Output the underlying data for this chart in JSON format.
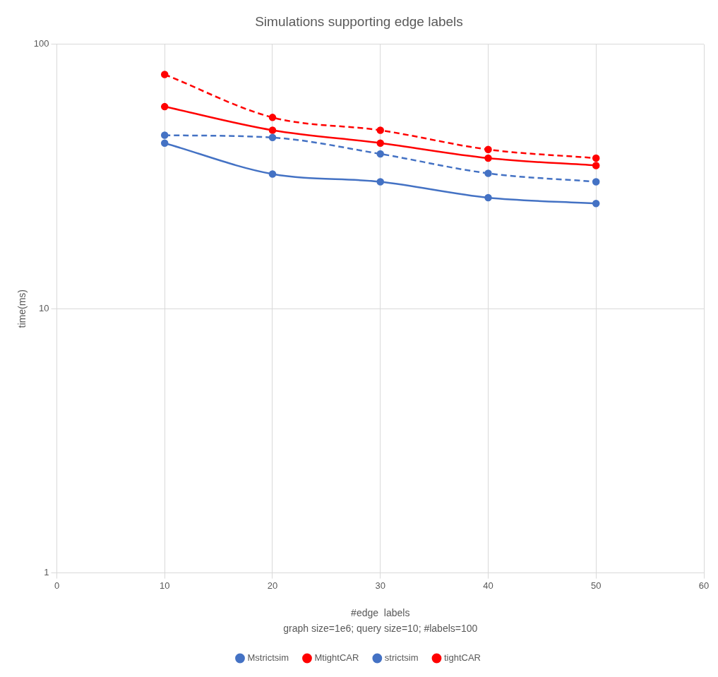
{
  "chart_data": {
    "type": "line",
    "title": "Simulations supporting edge labels",
    "xlabel": "#edge  labels",
    "ylabel": "time(ms)",
    "annotations": [
      "graph size=1e6; query size=10; #labels=100"
    ],
    "x": [
      10,
      20,
      30,
      40,
      50
    ],
    "xlim": [
      0,
      60
    ],
    "xticks": [
      0,
      10,
      20,
      30,
      40,
      50,
      60
    ],
    "ylim": [
      1,
      100
    ],
    "yticks": [
      1,
      10,
      100
    ],
    "log": "y",
    "grid": true,
    "legend": "bottom",
    "marker": "circle",
    "series": [
      {
        "name": "Mstrictsim",
        "color": "#4472c4",
        "line_style": "dashed",
        "values": [
          45.3,
          44.4,
          38.5,
          32.5,
          30.2
        ]
      },
      {
        "name": "MtightCAR",
        "color": "#ff0000",
        "line_style": "dashed",
        "values": [
          76.9,
          52.9,
          47.3,
          40,
          37.1
        ]
      },
      {
        "name": "strictsim",
        "color": "#4472c4",
        "line_style": "solid",
        "values": [
          42.3,
          32.3,
          30.2,
          26.3,
          25
        ]
      },
      {
        "name": "tightCAR",
        "color": "#ff0000",
        "line_style": "solid",
        "values": [
          58.1,
          47.3,
          42.3,
          37.1,
          34.8
        ]
      }
    ]
  }
}
